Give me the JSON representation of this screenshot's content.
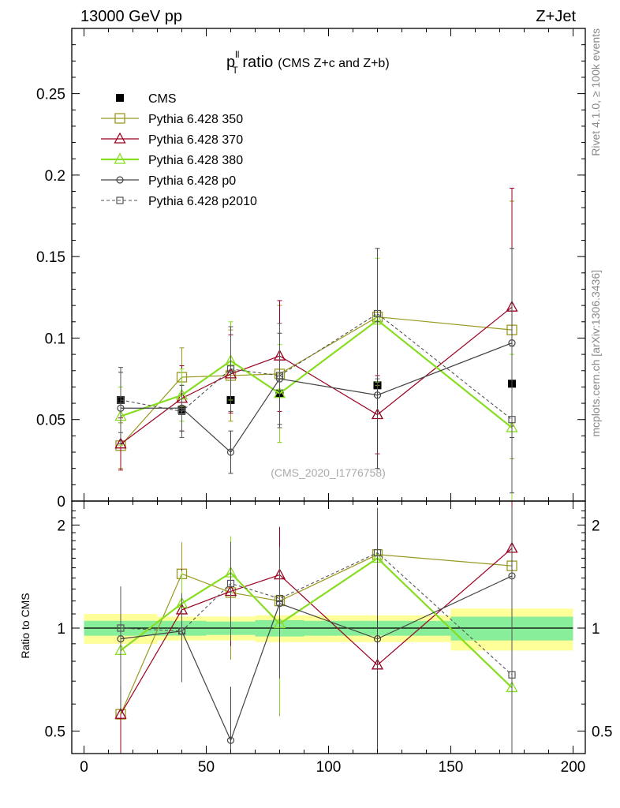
{
  "header": {
    "left": "13000 GeV pp",
    "right": "Z+Jet"
  },
  "side_labels": {
    "rivet": "Rivet 4.1.0, ≥ 100k events",
    "mcplots": "mcplots.cern.ch [arXiv:1306.3436]"
  },
  "plot_title": {
    "main_prefix": "p",
    "sup": "ll",
    "sub": "T",
    "main_suffix": " ratio",
    "note": "(CMS  Z+c and Z+b)"
  },
  "watermark": "(CMS_2020_I1776758)",
  "ratio_ylabel": "Ratio to CMS",
  "colors": {
    "cms": "#000000",
    "p350": "#999922",
    "p370": "#990022",
    "p380": "#88dd22",
    "p0": "#444444",
    "p2010": "#555555",
    "band_inner": "#88ee99",
    "band_outer": "#ffff99"
  },
  "chart_data": [
    {
      "type": "scatter",
      "panel": "main",
      "x": [
        15,
        40,
        60,
        80,
        120,
        175
      ],
      "xlim": [
        -5,
        205
      ],
      "ylim": [
        0,
        0.29
      ],
      "xticks": [
        0,
        50,
        100,
        150,
        200
      ],
      "yticks": [
        0,
        0.05,
        0.1,
        0.15,
        0.2,
        0.25
      ],
      "ytick_labels": [
        "0",
        "0.05",
        "0.1",
        "0.15",
        "0.2",
        "0.25"
      ],
      "series": [
        {
          "name": "CMS",
          "key": "cms",
          "marker": "square-filled",
          "line": "none",
          "values": [
            0.062,
            0.056,
            0.062,
            0.066,
            0.071,
            0.072
          ]
        },
        {
          "name": "Pythia 6.428 350",
          "key": "p350",
          "marker": "square-open",
          "line": "solid",
          "values": [
            0.034,
            0.076,
            0.077,
            0.078,
            0.113,
            0.105
          ],
          "err": [
            0.014,
            0.018,
            0.028,
            0.042,
            0.042,
            0.079
          ]
        },
        {
          "name": "Pythia 6.428 370",
          "key": "p370",
          "marker": "triangle-open",
          "line": "solid",
          "values": [
            0.035,
            0.063,
            0.078,
            0.089,
            0.053,
            0.119
          ],
          "err": [
            0.016,
            0.02,
            0.024,
            0.034,
            0.024,
            0.073
          ]
        },
        {
          "name": "Pythia 6.428 380",
          "key": "p380",
          "marker": "triangle-open",
          "line": "solid-thick",
          "values": [
            0.052,
            0.065,
            0.086,
            0.066,
            0.111,
            0.045
          ],
          "err": [
            0.018,
            0.016,
            0.024,
            0.03,
            0.038,
            0.045
          ]
        },
        {
          "name": "Pythia 6.428 p0",
          "key": "p0",
          "marker": "circle-open",
          "line": "solid",
          "values": [
            0.057,
            0.057,
            0.03,
            0.075,
            0.065,
            0.097
          ],
          "err": [
            0.022,
            0.014,
            0.013,
            0.028,
            0.045,
            0.058
          ]
        },
        {
          "name": "Pythia 6.428 p2010",
          "key": "p2010",
          "marker": "square-small-open",
          "line": "dashed",
          "values": [
            0.062,
            0.055,
            0.081,
            0.077,
            0.115,
            0.05
          ],
          "err": [
            0.02,
            0.016,
            0.026,
            0.032,
            0.04,
            0.045
          ]
        }
      ]
    },
    {
      "type": "scatter",
      "panel": "ratio",
      "ylabel": "Ratio to CMS",
      "scale": "log",
      "x": [
        15,
        40,
        60,
        80,
        120,
        175
      ],
      "xlim": [
        -5,
        205
      ],
      "ylim": [
        0.43,
        2.35
      ],
      "yticks": [
        0.5,
        1,
        2
      ],
      "ytick_labels": [
        "0.5",
        "1",
        "2"
      ],
      "reference_band": {
        "edges": [
          0,
          30,
          50,
          70,
          90,
          150,
          200
        ],
        "inner": [
          0.05,
          0.05,
          0.045,
          0.055,
          0.05,
          0.08
        ],
        "outer": [
          0.1,
          0.08,
          0.08,
          0.09,
          0.09,
          0.14
        ]
      },
      "series": [
        {
          "name": "Pythia 6.428 350",
          "key": "p350",
          "values": [
            0.56,
            1.44,
            1.27,
            1.2,
            1.64,
            1.52
          ]
        },
        {
          "name": "Pythia 6.428 370",
          "key": "p370",
          "values": [
            0.56,
            1.13,
            1.28,
            1.43,
            0.78,
            1.71
          ]
        },
        {
          "name": "Pythia 6.428 380",
          "key": "p380",
          "values": [
            0.86,
            1.18,
            1.45,
            1.03,
            1.6,
            0.67
          ]
        },
        {
          "name": "Pythia 6.428 p0",
          "key": "p0",
          "values": [
            0.93,
            0.98,
            0.47,
            1.18,
            0.93,
            1.42
          ]
        },
        {
          "name": "Pythia 6.428 p2010",
          "key": "p2010",
          "values": [
            1.0,
            0.98,
            1.35,
            1.22,
            1.66,
            0.73
          ]
        }
      ]
    }
  ]
}
